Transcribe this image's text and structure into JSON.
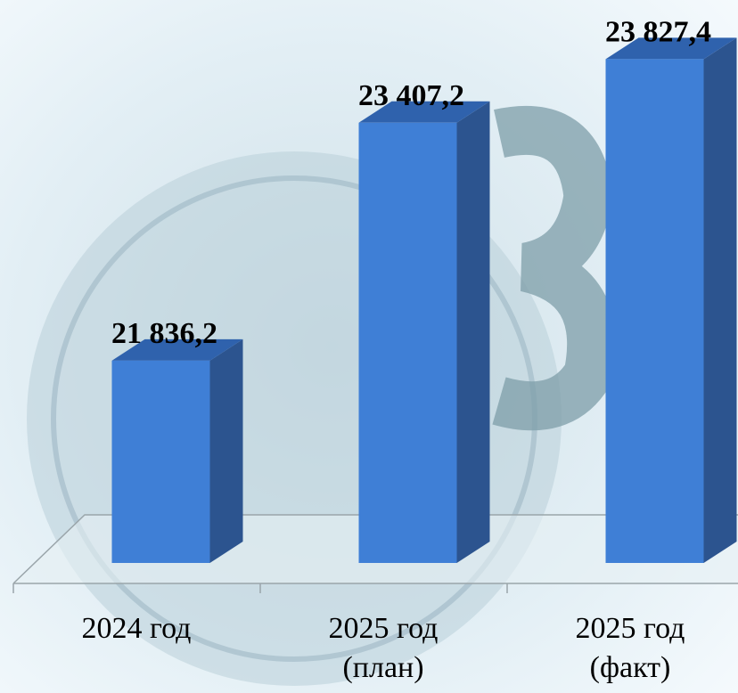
{
  "chart_data": {
    "type": "bar3d",
    "categories": [
      "2024 год",
      "2025 год\n(план)",
      "2025 год\n(факт)"
    ],
    "values": [
      21836.2,
      23407.2,
      23827.4
    ],
    "value_labels": [
      "21 836,2",
      "23 407,2",
      "23 827,4"
    ],
    "color": "#3f7fd6",
    "ylim": [
      20500,
      24000
    ]
  }
}
